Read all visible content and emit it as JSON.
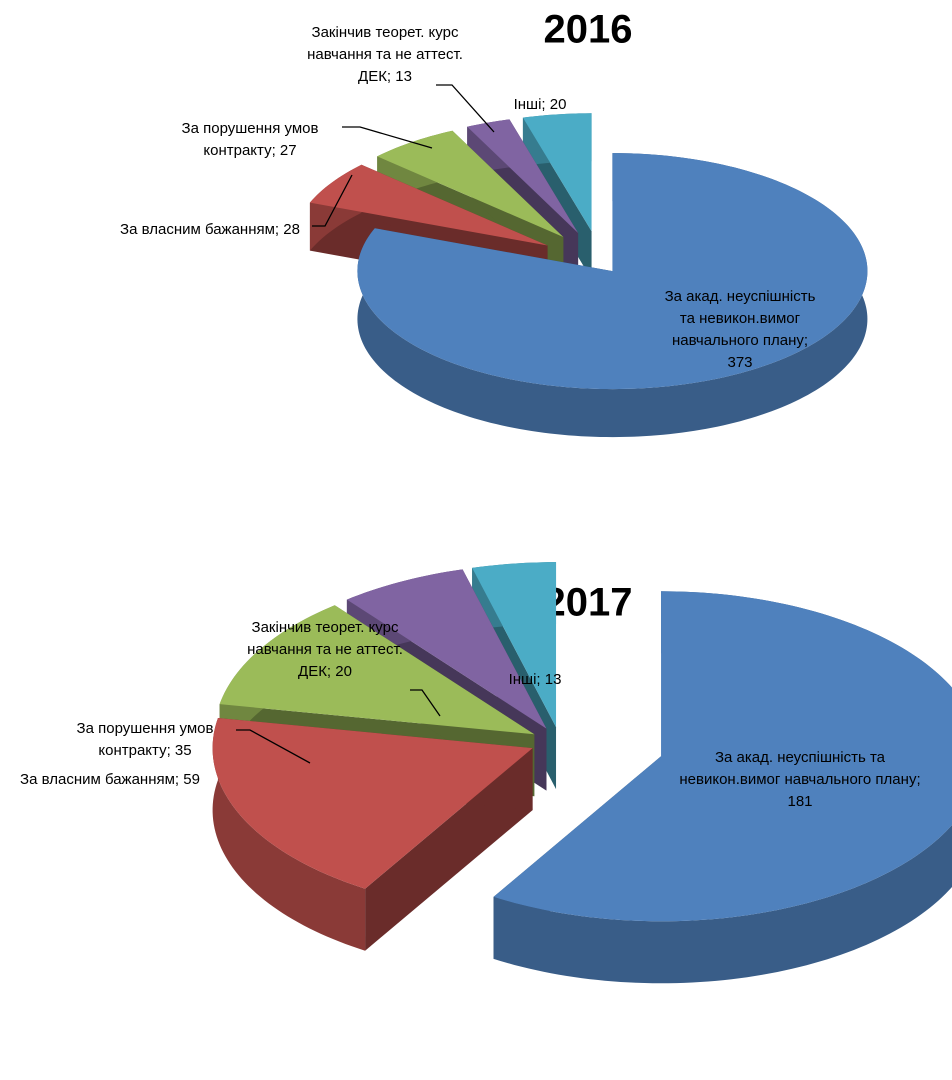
{
  "chart_data": [
    {
      "type": "pie3d",
      "title": "2016",
      "values": [
        373,
        28,
        27,
        13,
        20
      ],
      "value_labels": [
        "За акад. неуспішність та невикон.вимог навчального плану; 373",
        "За власним бажанням; 28",
        "За порушення умов контракту; 27",
        "Закінчив теорет. курс навчання та не аттест. ДЕК; 13",
        "Інші; 20"
      ],
      "colors": [
        "#4f81bd",
        "#c0504d",
        "#9bbb59",
        "#8064a2",
        "#4bacc6"
      ]
    },
    {
      "type": "pie3d",
      "title": "2017",
      "values": [
        181,
        59,
        35,
        20,
        13
      ],
      "value_labels": [
        "За акад. неуспішність та невикон.вимог навчального плану; 181",
        "За власним бажанням; 59",
        "За порушення умов контракту; 35",
        "Закінчив теорет. курс навчання та не аттест. ДЕК; 20",
        "Інші; 13"
      ],
      "colors": [
        "#4f81bd",
        "#c0504d",
        "#9bbb59",
        "#8064a2",
        "#4bacc6"
      ]
    }
  ]
}
